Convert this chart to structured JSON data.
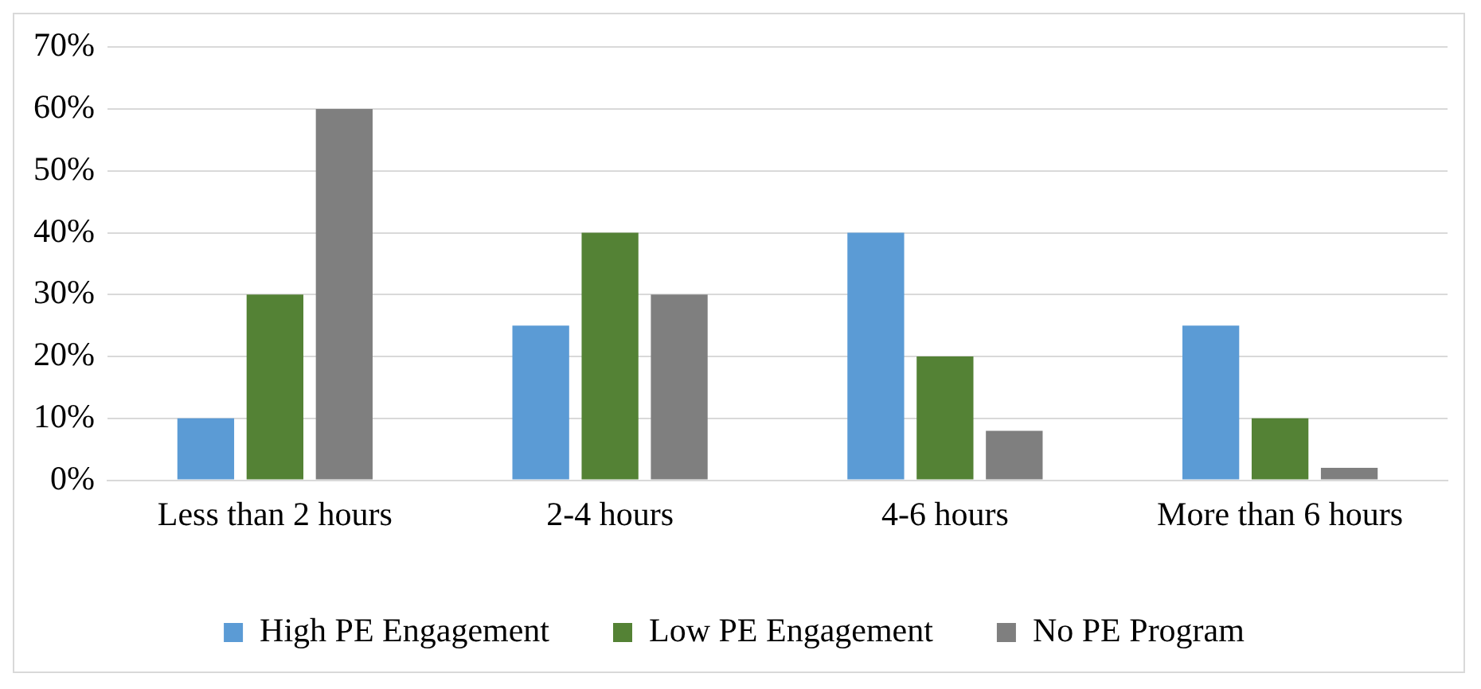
{
  "chart_data": {
    "type": "bar",
    "categories": [
      "Less than 2 hours",
      "2-4 hours",
      "4-6 hours",
      "More than 6 hours"
    ],
    "series": [
      {
        "name": "High PE Engagement",
        "color": "#5b9bd5",
        "values": [
          10,
          25,
          40,
          25
        ]
      },
      {
        "name": "Low PE Engagement",
        "color": "#548235",
        "values": [
          30,
          40,
          20,
          10
        ]
      },
      {
        "name": "No PE Program",
        "color": "#7f7f7f",
        "values": [
          60,
          30,
          8,
          2
        ]
      }
    ],
    "ylim": [
      0,
      70
    ],
    "yticks": [
      {
        "value": 0,
        "label": "0%"
      },
      {
        "value": 10,
        "label": "10%"
      },
      {
        "value": 20,
        "label": "20%"
      },
      {
        "value": 30,
        "label": "30%"
      },
      {
        "value": 40,
        "label": "40%"
      },
      {
        "value": 50,
        "label": "50%"
      },
      {
        "value": 60,
        "label": "60%"
      },
      {
        "value": 70,
        "label": "70%"
      }
    ],
    "grid": "y",
    "legend": "bottom"
  }
}
